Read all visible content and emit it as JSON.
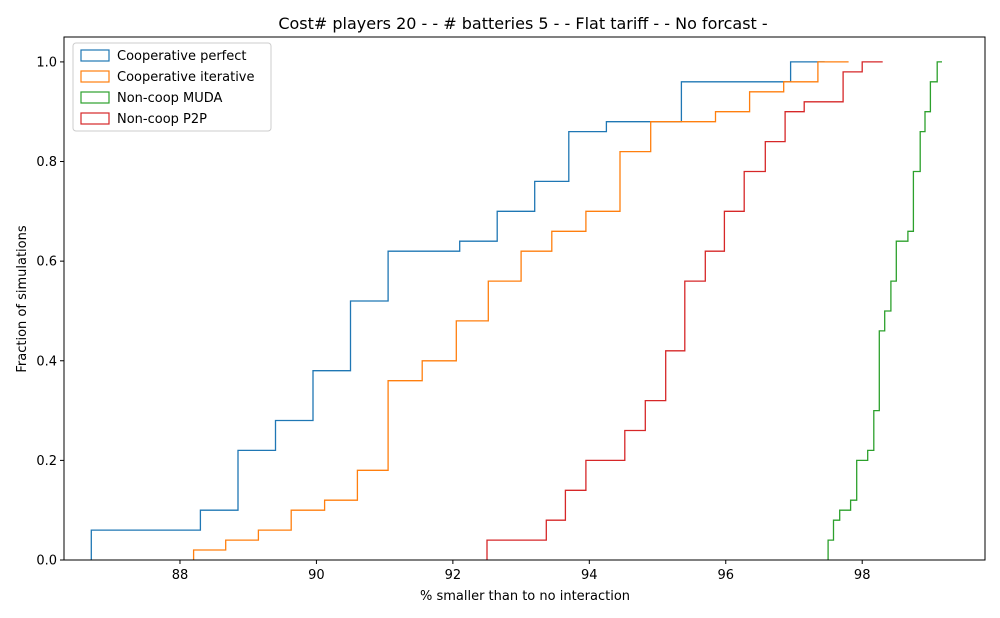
{
  "chart_data": {
    "type": "line",
    "step": true,
    "title": "Cost# players 20 - - # batteries 5 - - Flat tariff -  - No forcast -",
    "xlabel": "% smaller than to no interaction",
    "ylabel": "Fraction of simulations",
    "xlim": [
      86.3,
      99.8
    ],
    "ylim": [
      0,
      1.05
    ],
    "x_ticks": [
      88,
      90,
      92,
      94,
      96,
      98
    ],
    "y_ticks": [
      0.0,
      0.2,
      0.4,
      0.6,
      0.8,
      1.0
    ],
    "x_tick_labels": [
      "88",
      "90",
      "92",
      "94",
      "96",
      "98"
    ],
    "y_tick_labels": [
      "0.0",
      "0.2",
      "0.4",
      "0.6",
      "0.8",
      "1.0"
    ],
    "grid": false,
    "legend_position": "top-left",
    "series": [
      {
        "name": "Cooperative perfect",
        "color": "#1f77b4",
        "points": [
          [
            86.7,
            0
          ],
          [
            86.7,
            0.06
          ],
          [
            88.3,
            0.06
          ],
          [
            88.3,
            0.1
          ],
          [
            88.85,
            0.1
          ],
          [
            88.85,
            0.22
          ],
          [
            89.4,
            0.22
          ],
          [
            89.4,
            0.28
          ],
          [
            89.95,
            0.28
          ],
          [
            89.95,
            0.38
          ],
          [
            90.5,
            0.38
          ],
          [
            90.5,
            0.52
          ],
          [
            91.05,
            0.52
          ],
          [
            91.05,
            0.62
          ],
          [
            92.1,
            0.62
          ],
          [
            92.1,
            0.64
          ],
          [
            92.65,
            0.64
          ],
          [
            92.65,
            0.7
          ],
          [
            93.2,
            0.7
          ],
          [
            93.2,
            0.76
          ],
          [
            93.7,
            0.76
          ],
          [
            93.7,
            0.86
          ],
          [
            94.25,
            0.86
          ],
          [
            94.25,
            0.88
          ],
          [
            95.35,
            0.88
          ],
          [
            95.35,
            0.96
          ],
          [
            96.95,
            0.96
          ],
          [
            96.95,
            1.0
          ],
          [
            97.45,
            1.0
          ]
        ]
      },
      {
        "name": "Cooperative iterative",
        "color": "#ff7f0e",
        "points": [
          [
            88.2,
            0
          ],
          [
            88.2,
            0.02
          ],
          [
            88.67,
            0.02
          ],
          [
            88.67,
            0.04
          ],
          [
            89.15,
            0.04
          ],
          [
            89.15,
            0.06
          ],
          [
            89.63,
            0.06
          ],
          [
            89.63,
            0.1
          ],
          [
            90.12,
            0.1
          ],
          [
            90.12,
            0.12
          ],
          [
            90.6,
            0.12
          ],
          [
            90.6,
            0.18
          ],
          [
            91.05,
            0.18
          ],
          [
            91.05,
            0.36
          ],
          [
            91.55,
            0.36
          ],
          [
            91.55,
            0.4
          ],
          [
            92.05,
            0.4
          ],
          [
            92.05,
            0.48
          ],
          [
            92.52,
            0.48
          ],
          [
            92.52,
            0.56
          ],
          [
            93.0,
            0.56
          ],
          [
            93.0,
            0.62
          ],
          [
            93.45,
            0.62
          ],
          [
            93.45,
            0.66
          ],
          [
            93.95,
            0.66
          ],
          [
            93.95,
            0.7
          ],
          [
            94.45,
            0.7
          ],
          [
            94.45,
            0.82
          ],
          [
            94.9,
            0.82
          ],
          [
            94.9,
            0.88
          ],
          [
            95.85,
            0.88
          ],
          [
            95.85,
            0.9
          ],
          [
            96.35,
            0.9
          ],
          [
            96.35,
            0.94
          ],
          [
            96.85,
            0.94
          ],
          [
            96.85,
            0.96
          ],
          [
            97.35,
            0.96
          ],
          [
            97.35,
            1.0
          ],
          [
            97.8,
            1.0
          ]
        ]
      },
      {
        "name": "Non-coop MUDA",
        "color": "#2ca02c",
        "points": [
          [
            97.5,
            0
          ],
          [
            97.5,
            0.04
          ],
          [
            97.58,
            0.04
          ],
          [
            97.58,
            0.08
          ],
          [
            97.67,
            0.08
          ],
          [
            97.67,
            0.1
          ],
          [
            97.83,
            0.1
          ],
          [
            97.83,
            0.12
          ],
          [
            97.92,
            0.12
          ],
          [
            97.92,
            0.2
          ],
          [
            98.08,
            0.2
          ],
          [
            98.08,
            0.22
          ],
          [
            98.17,
            0.22
          ],
          [
            98.17,
            0.3
          ],
          [
            98.25,
            0.3
          ],
          [
            98.25,
            0.46
          ],
          [
            98.33,
            0.46
          ],
          [
            98.33,
            0.5
          ],
          [
            98.42,
            0.5
          ],
          [
            98.42,
            0.56
          ],
          [
            98.5,
            0.56
          ],
          [
            98.5,
            0.64
          ],
          [
            98.67,
            0.64
          ],
          [
            98.67,
            0.66
          ],
          [
            98.75,
            0.66
          ],
          [
            98.75,
            0.78
          ],
          [
            98.85,
            0.78
          ],
          [
            98.85,
            0.86
          ],
          [
            98.92,
            0.86
          ],
          [
            98.92,
            0.9
          ],
          [
            99.0,
            0.9
          ],
          [
            99.0,
            0.96
          ],
          [
            99.1,
            0.96
          ],
          [
            99.1,
            1.0
          ],
          [
            99.17,
            1.0
          ]
        ]
      },
      {
        "name": "Non-coop P2P",
        "color": "#d62728",
        "points": [
          [
            92.5,
            0
          ],
          [
            92.5,
            0.04
          ],
          [
            93.37,
            0.04
          ],
          [
            93.37,
            0.08
          ],
          [
            93.65,
            0.08
          ],
          [
            93.65,
            0.14
          ],
          [
            93.95,
            0.14
          ],
          [
            93.95,
            0.2
          ],
          [
            94.52,
            0.2
          ],
          [
            94.52,
            0.26
          ],
          [
            94.82,
            0.26
          ],
          [
            94.82,
            0.32
          ],
          [
            95.12,
            0.32
          ],
          [
            95.12,
            0.42
          ],
          [
            95.4,
            0.42
          ],
          [
            95.4,
            0.56
          ],
          [
            95.7,
            0.56
          ],
          [
            95.7,
            0.62
          ],
          [
            95.98,
            0.62
          ],
          [
            95.98,
            0.7
          ],
          [
            96.27,
            0.7
          ],
          [
            96.27,
            0.78
          ],
          [
            96.58,
            0.78
          ],
          [
            96.58,
            0.84
          ],
          [
            96.87,
            0.84
          ],
          [
            96.87,
            0.9
          ],
          [
            97.15,
            0.9
          ],
          [
            97.15,
            0.92
          ],
          [
            97.72,
            0.92
          ],
          [
            97.72,
            0.98
          ],
          [
            98.0,
            0.98
          ],
          [
            98.0,
            1.0
          ],
          [
            98.3,
            1.0
          ]
        ]
      }
    ]
  }
}
